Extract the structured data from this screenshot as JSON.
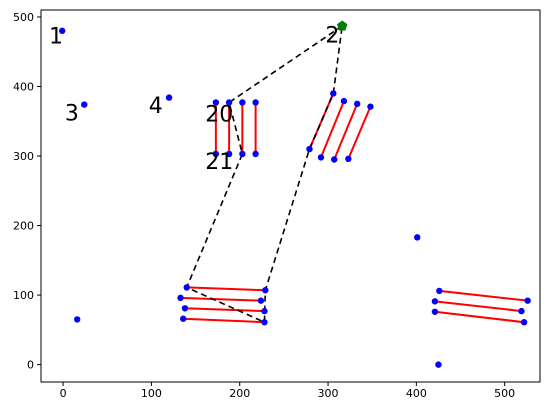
{
  "chart_data": {
    "type": "scatter",
    "title": "",
    "xlabel": "",
    "ylabel": "",
    "xlim": [
      -25,
      540
    ],
    "ylim": [
      -25,
      510
    ],
    "x_ticks": [
      0,
      100,
      200,
      300,
      400,
      500
    ],
    "y_ticks": [
      0,
      100,
      200,
      300,
      400,
      500
    ],
    "grid": false,
    "colors": {
      "points": "#0000ff",
      "segments": "#ff0000",
      "path": "#000000",
      "start": "#008000"
    },
    "start_point": {
      "x": 316,
      "y": 487
    },
    "points": [
      {
        "x": -1,
        "y": 480
      },
      {
        "x": 24,
        "y": 374
      },
      {
        "x": 120,
        "y": 384
      },
      {
        "x": 16,
        "y": 65
      },
      {
        "x": 401,
        "y": 183
      },
      {
        "x": 425,
        "y": 0
      },
      {
        "x": 173,
        "y": 377
      },
      {
        "x": 173,
        "y": 303
      },
      {
        "x": 188,
        "y": 377
      },
      {
        "x": 188,
        "y": 303
      },
      {
        "x": 203,
        "y": 377
      },
      {
        "x": 203,
        "y": 303
      },
      {
        "x": 218,
        "y": 377
      },
      {
        "x": 218,
        "y": 303
      },
      {
        "x": 279,
        "y": 310
      },
      {
        "x": 306,
        "y": 390
      },
      {
        "x": 292,
        "y": 298
      },
      {
        "x": 318,
        "y": 379
      },
      {
        "x": 307,
        "y": 295
      },
      {
        "x": 333,
        "y": 375
      },
      {
        "x": 323,
        "y": 296
      },
      {
        "x": 348,
        "y": 371
      },
      {
        "x": 140,
        "y": 111
      },
      {
        "x": 229,
        "y": 107
      },
      {
        "x": 133,
        "y": 96
      },
      {
        "x": 224,
        "y": 92
      },
      {
        "x": 138,
        "y": 81
      },
      {
        "x": 228,
        "y": 77
      },
      {
        "x": 136,
        "y": 66
      },
      {
        "x": 228,
        "y": 61
      },
      {
        "x": 426,
        "y": 106
      },
      {
        "x": 526,
        "y": 92
      },
      {
        "x": 421,
        "y": 91
      },
      {
        "x": 519,
        "y": 77
      },
      {
        "x": 421,
        "y": 76
      },
      {
        "x": 522,
        "y": 61
      }
    ],
    "segments": [
      [
        [
          173,
          377
        ],
        [
          173,
          303
        ]
      ],
      [
        [
          188,
          377
        ],
        [
          188,
          303
        ]
      ],
      [
        [
          203,
          377
        ],
        [
          203,
          303
        ]
      ],
      [
        [
          218,
          377
        ],
        [
          218,
          303
        ]
      ],
      [
        [
          279,
          310
        ],
        [
          306,
          390
        ]
      ],
      [
        [
          292,
          298
        ],
        [
          318,
          379
        ]
      ],
      [
        [
          307,
          295
        ],
        [
          333,
          375
        ]
      ],
      [
        [
          323,
          296
        ],
        [
          348,
          371
        ]
      ],
      [
        [
          140,
          111
        ],
        [
          229,
          107
        ]
      ],
      [
        [
          133,
          96
        ],
        [
          224,
          92
        ]
      ],
      [
        [
          138,
          81
        ],
        [
          228,
          77
        ]
      ],
      [
        [
          136,
          66
        ],
        [
          228,
          61
        ]
      ],
      [
        [
          426,
          106
        ],
        [
          526,
          92
        ]
      ],
      [
        [
          421,
          91
        ],
        [
          519,
          77
        ]
      ],
      [
        [
          421,
          76
        ],
        [
          522,
          61
        ]
      ]
    ],
    "path": [
      [
        316,
        487
      ],
      [
        188,
        377
      ],
      [
        203,
        303
      ],
      [
        140,
        111
      ],
      [
        228,
        61
      ],
      [
        229,
        107
      ],
      [
        279,
        310
      ],
      [
        306,
        390
      ],
      [
        316,
        487
      ]
    ],
    "annotations": [
      {
        "text": "1",
        "x": -16,
        "y": 462
      },
      {
        "text": "2",
        "x": 297,
        "y": 463
      },
      {
        "text": "3",
        "x": 2,
        "y": 351
      },
      {
        "text": "4",
        "x": 97,
        "y": 362
      },
      {
        "text": "20",
        "x": 161,
        "y": 350
      },
      {
        "text": "21",
        "x": 161,
        "y": 281
      }
    ]
  }
}
